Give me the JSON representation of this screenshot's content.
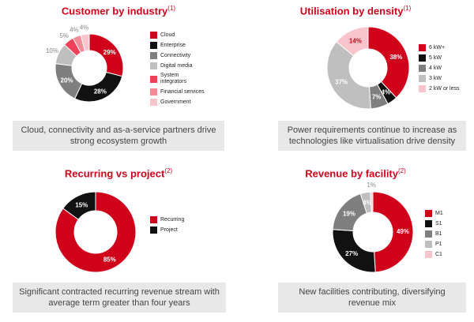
{
  "chart_data": [
    {
      "type": "pie",
      "title": "Customer by industry",
      "title_note": "(1)",
      "categories": [
        "Cloud",
        "Enterprise",
        "Connectivity",
        "Digital media",
        "System integrators",
        "Financial services",
        "Government"
      ],
      "values": [
        29,
        28,
        20,
        10,
        5,
        4,
        4
      ],
      "labels": [
        "29%",
        "28%",
        "20%",
        "10%",
        "5%",
        "4%",
        "4%"
      ],
      "colors": [
        "#d0021b",
        "#111111",
        "#7f7f7f",
        "#bfbfbf",
        "#f0415a",
        "#f28b96",
        "#f9c5cc"
      ],
      "legend_position": "right",
      "caption": "Cloud, connectivity and as-a-service partners drive strong ecosystem growth"
    },
    {
      "type": "pie",
      "title": "Utilisation by density",
      "title_note": "(1)",
      "categories": [
        "6 kW+",
        "5 kW",
        "4 kW",
        "3 kW",
        "2 kW or less"
      ],
      "values": [
        38,
        4,
        7,
        37,
        14
      ],
      "labels": [
        "38%",
        "4%",
        "7%",
        "37%",
        "14%"
      ],
      "colors": [
        "#d0021b",
        "#111111",
        "#7f7f7f",
        "#bfbfbf",
        "#f9c5cc"
      ],
      "legend_position": "right",
      "caption": "Power requirements continue to increase as technologies like virtualisation drive density"
    },
    {
      "type": "pie",
      "title": "Recurring vs project",
      "title_note": "(2)",
      "categories": [
        "Recurring",
        "Project"
      ],
      "values": [
        85,
        15
      ],
      "labels": [
        "85%",
        "15%"
      ],
      "colors": [
        "#d0021b",
        "#111111"
      ],
      "legend_position": "right",
      "caption": "Significant contracted recurring revenue stream with average term greater than four years"
    },
    {
      "type": "pie",
      "title": "Revenue by facility",
      "title_note": "(2)",
      "categories": [
        "M1",
        "S1",
        "B1",
        "P1",
        "C1"
      ],
      "values": [
        49,
        27,
        19,
        4,
        1
      ],
      "labels": [
        "49%",
        "27%",
        "19%",
        "4%",
        "1%"
      ],
      "colors": [
        "#d0021b",
        "#111111",
        "#7f7f7f",
        "#bfbfbf",
        "#f9c5cc"
      ],
      "legend_position": "right",
      "caption": "New facilities contributing, diversifying revenue mix"
    }
  ]
}
